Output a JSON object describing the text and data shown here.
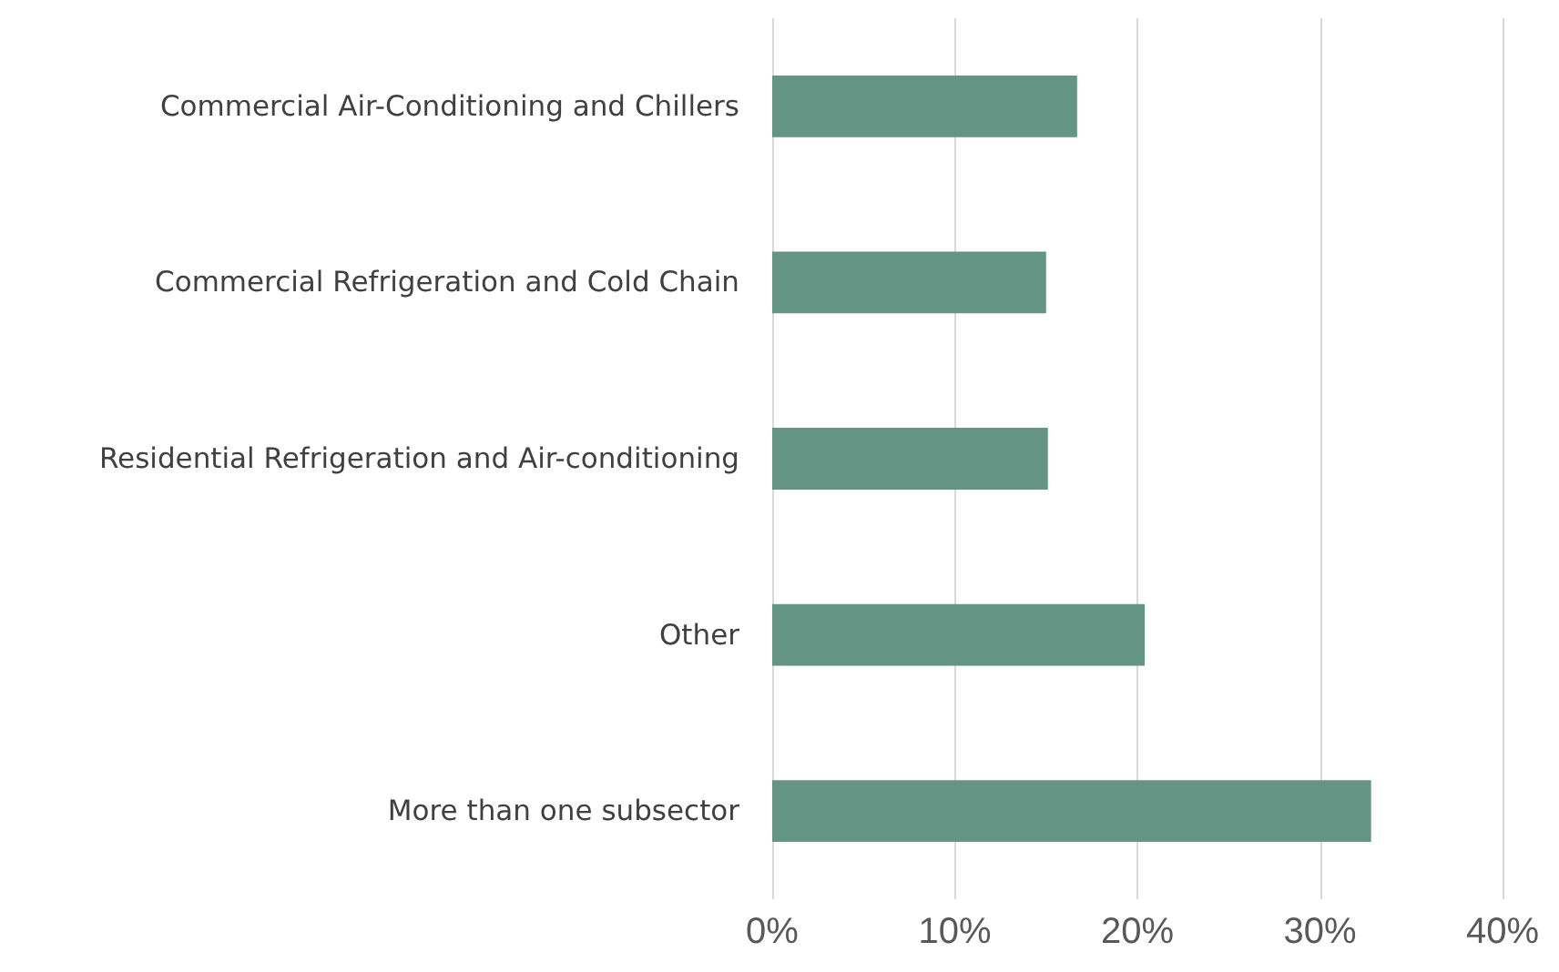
{
  "chart_data": {
    "type": "bar",
    "orientation": "horizontal",
    "categories": [
      "Commercial Air-Conditioning and Chillers",
      "Commercial Refrigeration and Cold Chain",
      "Residential Refrigeration and Air-conditioning",
      "Other",
      "More than one subsector"
    ],
    "values": [
      16.7,
      15.0,
      15.1,
      20.4,
      32.8
    ],
    "color": "#649484",
    "xlim": [
      0,
      40
    ],
    "xticks": [
      {
        "value": 0,
        "label": "0%"
      },
      {
        "value": 10,
        "label": "10%"
      },
      {
        "value": 20,
        "label": "20%"
      },
      {
        "value": 30,
        "label": "30%"
      },
      {
        "value": 40,
        "label": "40%"
      }
    ],
    "grid": "x"
  }
}
